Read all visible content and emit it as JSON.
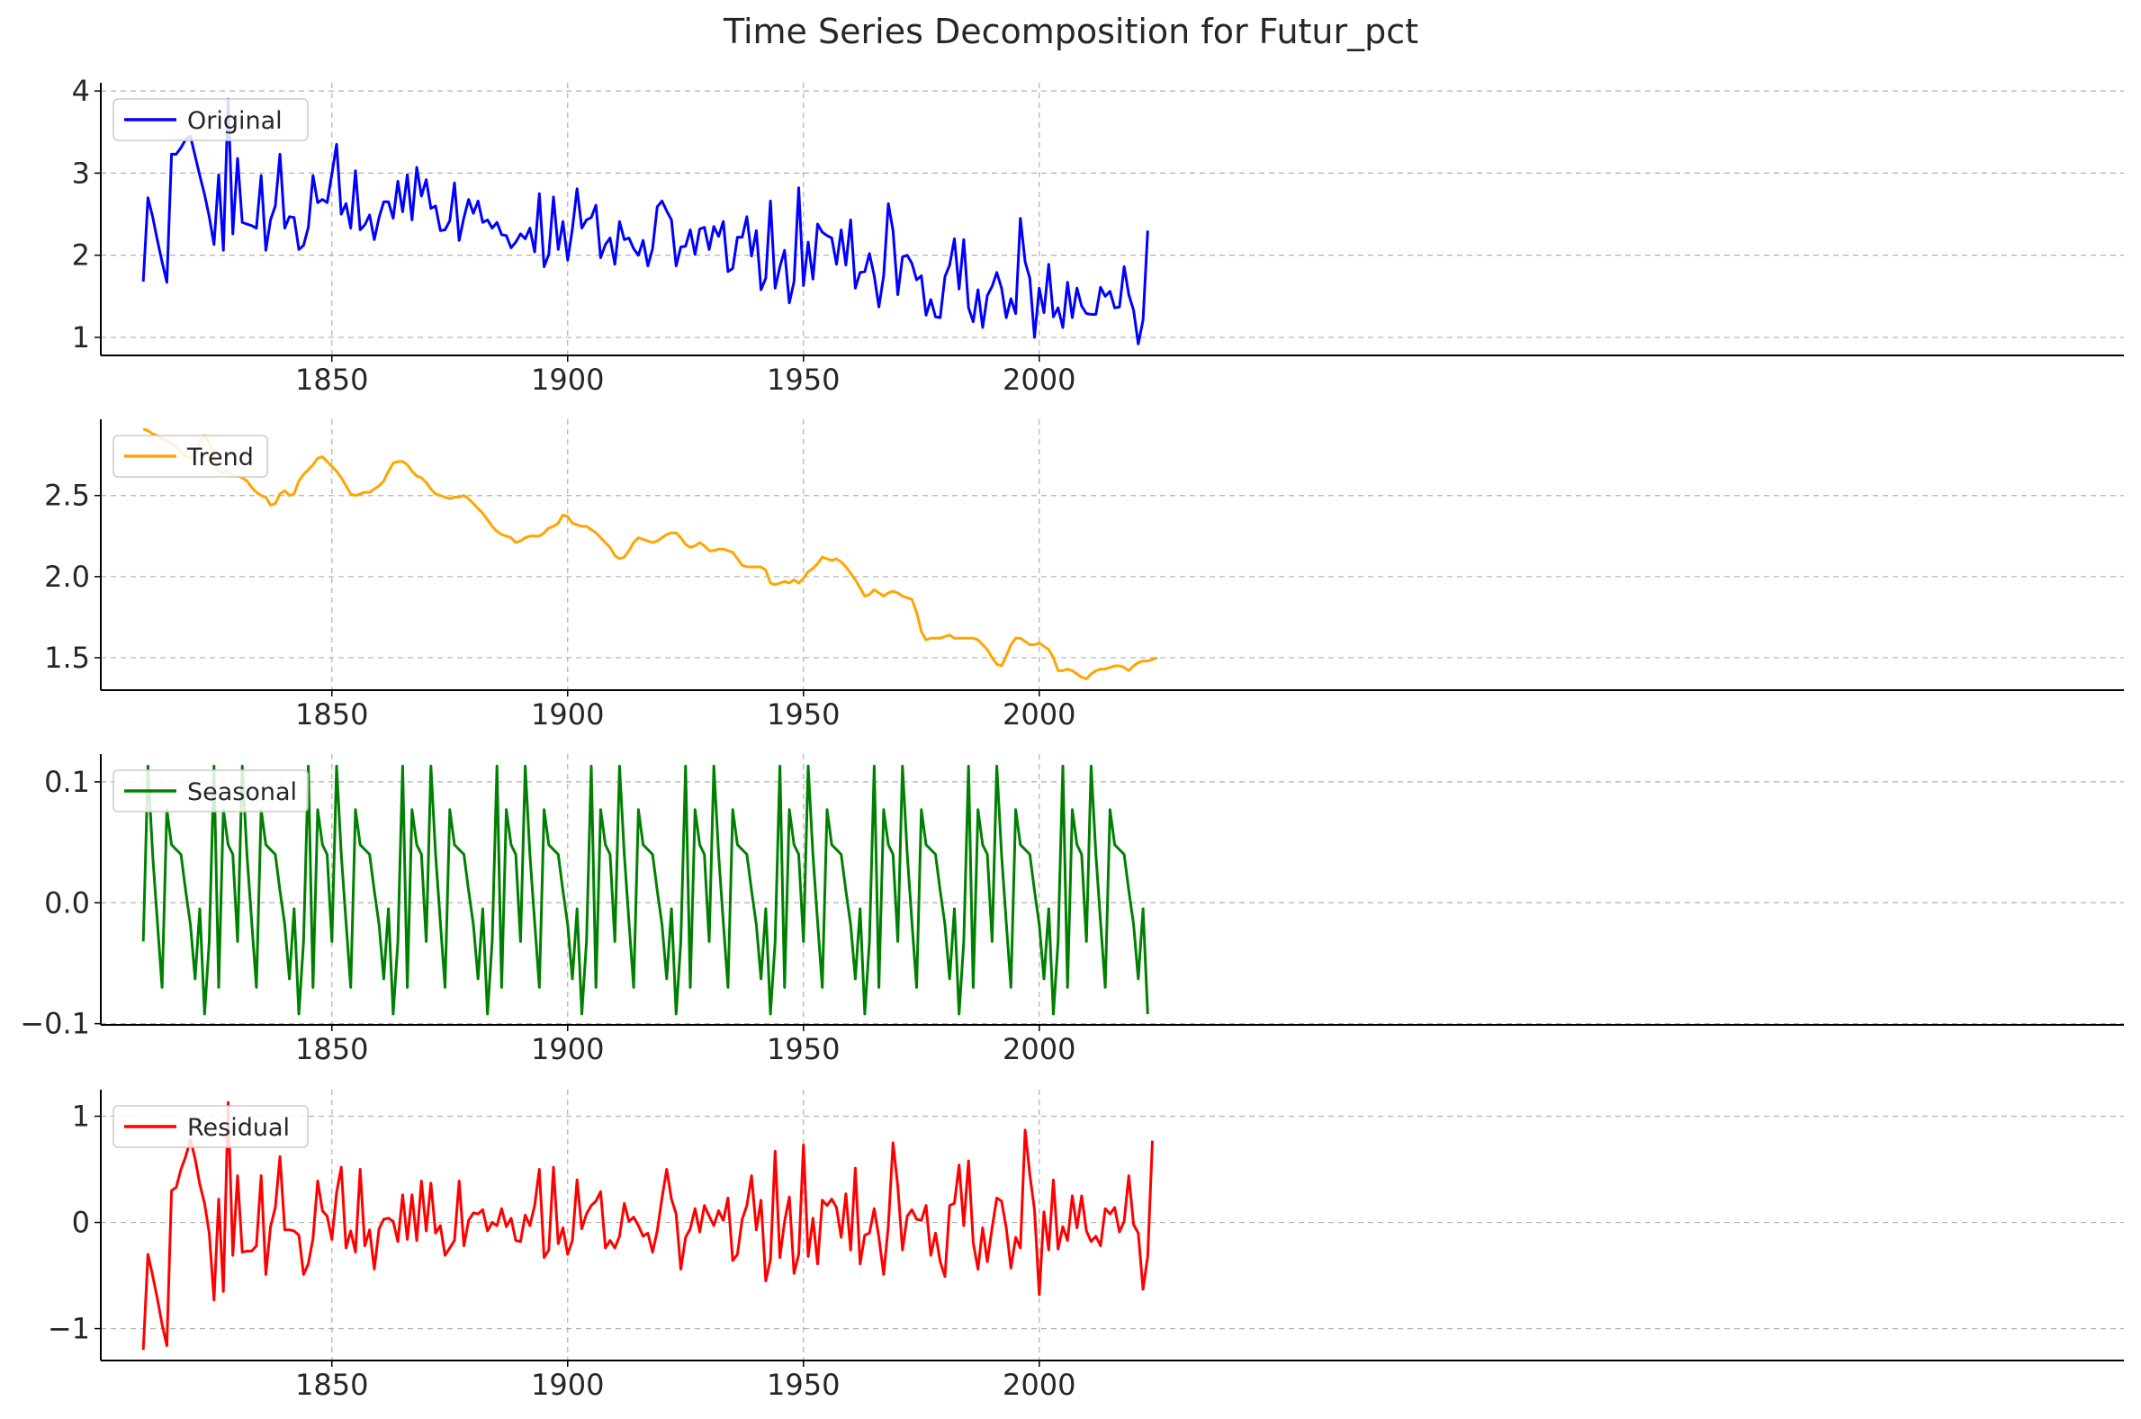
{
  "chart_data": {
    "type": "line",
    "title": "Time Series Decomposition for Futur_pct",
    "xlim": [
      1801,
      2230
    ],
    "grid": true,
    "legend_position": "top-left",
    "x_ticks": [
      1850,
      1900,
      1950,
      2000
    ],
    "x_start": 1810,
    "x_step": 1,
    "panels": [
      {
        "name": "Original",
        "color": "#0000ff",
        "ylim": [
          0.78,
          4.1
        ],
        "y_ticks": [
          {
            "v": 1,
            "label": "1"
          },
          {
            "v": 2,
            "label": "2"
          },
          {
            "v": 3,
            "label": "3"
          },
          {
            "v": 4,
            "label": "4"
          }
        ],
        "values": [
          1.68,
          2.7,
          2.47,
          2.18,
          1.92,
          1.67,
          3.23,
          3.23,
          3.31,
          3.41,
          3.45,
          3.21,
          2.97,
          2.74,
          2.47,
          2.13,
          2.98,
          2.06,
          3.9,
          2.26,
          3.18,
          2.4,
          2.38,
          2.36,
          2.33,
          2.97,
          2.06,
          2.43,
          2.6,
          3.23,
          2.33,
          2.47,
          2.46,
          2.07,
          2.12,
          2.34,
          2.97,
          2.64,
          2.68,
          2.64,
          2.99,
          3.35,
          2.5,
          2.63,
          2.33,
          3.03,
          2.31,
          2.37,
          2.49,
          2.19,
          2.46,
          2.65,
          2.65,
          2.45,
          2.9,
          2.53,
          2.98,
          2.43,
          3.07,
          2.72,
          2.92,
          2.57,
          2.6,
          2.3,
          2.31,
          2.42,
          2.88,
          2.18,
          2.46,
          2.68,
          2.51,
          2.66,
          2.4,
          2.43,
          2.33,
          2.4,
          2.25,
          2.24,
          2.09,
          2.16,
          2.26,
          2.2,
          2.33,
          2.04,
          2.75,
          1.86,
          2.01,
          2.71,
          2.07,
          2.41,
          1.94,
          2.32,
          2.81,
          2.33,
          2.43,
          2.46,
          2.61,
          1.97,
          2.13,
          2.21,
          1.89,
          2.41,
          2.19,
          2.21,
          2.08,
          2.0,
          2.18,
          1.87,
          2.08,
          2.59,
          2.66,
          2.54,
          2.43,
          1.87,
          2.1,
          2.11,
          2.31,
          2.01,
          2.32,
          2.34,
          2.07,
          2.35,
          2.23,
          2.41,
          1.8,
          1.84,
          2.22,
          2.22,
          2.47,
          1.99,
          2.3,
          1.58,
          1.72,
          2.66,
          1.6,
          1.86,
          2.06,
          1.42,
          1.68,
          2.82,
          1.63,
          2.16,
          1.71,
          2.38,
          2.28,
          2.24,
          2.21,
          1.89,
          2.31,
          1.88,
          2.43,
          1.6,
          1.79,
          1.8,
          2.02,
          1.75,
          1.37,
          1.75,
          2.63,
          2.3,
          1.52,
          1.98,
          2.0,
          1.9,
          1.7,
          1.75,
          1.27,
          1.46,
          1.25,
          1.24,
          1.74,
          1.88,
          2.2,
          1.59,
          2.19,
          1.36,
          1.19,
          1.58,
          1.12,
          1.51,
          1.62,
          1.79,
          1.6,
          1.24,
          1.47,
          1.29,
          2.45,
          1.92,
          1.72,
          1.0,
          1.6,
          1.3,
          1.89,
          1.25,
          1.36,
          1.12,
          1.67,
          1.24,
          1.6,
          1.38,
          1.29,
          1.28,
          1.28,
          1.61,
          1.5,
          1.56,
          1.36,
          1.37,
          1.86,
          1.52,
          1.33,
          0.92,
          1.21,
          2.3
        ]
      },
      {
        "name": "Trend",
        "color": "#ffa500",
        "ylim": [
          1.3,
          2.97
        ],
        "y_ticks": [
          {
            "v": 1.5,
            "label": "1.5"
          },
          {
            "v": 2.0,
            "label": "2.0"
          },
          {
            "v": 2.5,
            "label": "2.5"
          }
        ],
        "values": [
          2.91,
          2.9,
          2.88,
          2.87,
          2.85,
          2.84,
          2.82,
          2.8,
          2.77,
          2.74,
          2.73,
          2.76,
          2.83,
          2.87,
          2.83,
          2.73,
          2.65,
          2.64,
          2.65,
          2.62,
          2.62,
          2.61,
          2.59,
          2.55,
          2.52,
          2.5,
          2.49,
          2.44,
          2.45,
          2.51,
          2.53,
          2.5,
          2.51,
          2.59,
          2.63,
          2.66,
          2.69,
          2.73,
          2.74,
          2.71,
          2.68,
          2.65,
          2.61,
          2.56,
          2.51,
          2.5,
          2.51,
          2.52,
          2.52,
          2.54,
          2.56,
          2.59,
          2.65,
          2.7,
          2.71,
          2.71,
          2.69,
          2.65,
          2.62,
          2.61,
          2.58,
          2.54,
          2.51,
          2.5,
          2.49,
          2.48,
          2.49,
          2.49,
          2.5,
          2.48,
          2.45,
          2.42,
          2.39,
          2.35,
          2.31,
          2.28,
          2.26,
          2.25,
          2.24,
          2.21,
          2.22,
          2.24,
          2.25,
          2.25,
          2.25,
          2.27,
          2.3,
          2.31,
          2.33,
          2.38,
          2.37,
          2.33,
          2.32,
          2.31,
          2.31,
          2.29,
          2.27,
          2.24,
          2.21,
          2.18,
          2.13,
          2.11,
          2.12,
          2.16,
          2.21,
          2.24,
          2.23,
          2.22,
          2.21,
          2.22,
          2.24,
          2.26,
          2.27,
          2.27,
          2.24,
          2.2,
          2.18,
          2.19,
          2.21,
          2.19,
          2.16,
          2.16,
          2.17,
          2.17,
          2.16,
          2.15,
          2.11,
          2.07,
          2.06,
          2.06,
          2.06,
          2.06,
          2.04,
          1.96,
          1.95,
          1.96,
          1.97,
          1.96,
          1.98,
          1.96,
          1.99,
          2.03,
          2.05,
          2.08,
          2.12,
          2.11,
          2.1,
          2.11,
          2.09,
          2.06,
          2.02,
          1.98,
          1.93,
          1.88,
          1.89,
          1.92,
          1.9,
          1.88,
          1.9,
          1.91,
          1.9,
          1.88,
          1.87,
          1.86,
          1.78,
          1.66,
          1.61,
          1.62,
          1.62,
          1.62,
          1.63,
          1.64,
          1.62,
          1.62,
          1.62,
          1.62,
          1.62,
          1.61,
          1.58,
          1.55,
          1.5,
          1.46,
          1.45,
          1.51,
          1.58,
          1.62,
          1.62,
          1.6,
          1.58,
          1.58,
          1.59,
          1.57,
          1.55,
          1.5,
          1.42,
          1.42,
          1.43,
          1.42,
          1.4,
          1.38,
          1.37,
          1.4,
          1.42,
          1.43,
          1.43,
          1.44,
          1.45,
          1.45,
          1.44,
          1.42,
          1.45,
          1.47,
          1.48,
          1.48,
          1.49,
          1.5
        ]
      },
      {
        "name": "Seasonal",
        "color": "#008000",
        "ylim": [
          -0.101,
          0.123
        ],
        "y_ticks": [
          {
            "v": -0.1,
            "label": "−0.1"
          },
          {
            "v": 0.0,
            "label": "0.0"
          },
          {
            "v": 0.1,
            "label": "0.1"
          }
        ],
        "period": 10,
        "values": [
          -0.032,
          0.113,
          0.04,
          -0.016,
          -0.07,
          0.077,
          0.048,
          0.044,
          0.04,
          0.01,
          -0.018,
          -0.063,
          -0.005,
          -0.092,
          -0.032,
          0.113,
          -0.07,
          0.077,
          0.048,
          0.04
        ]
      },
      {
        "name": "Residual",
        "color": "#ff0000",
        "ylim": [
          -1.3,
          1.25
        ],
        "y_ticks": [
          {
            "v": -1,
            "label": "−1"
          },
          {
            "v": 0,
            "label": "0"
          },
          {
            "v": 1,
            "label": "1"
          }
        ],
        "values": [
          -1.2,
          -0.3,
          -0.5,
          -0.72,
          -0.96,
          -1.16,
          0.3,
          0.33,
          0.5,
          0.62,
          0.78,
          0.6,
          0.36,
          0.18,
          -0.1,
          -0.73,
          0.22,
          -0.65,
          1.13,
          -0.31,
          0.44,
          -0.28,
          -0.27,
          -0.27,
          -0.22,
          0.44,
          -0.49,
          -0.04,
          0.14,
          0.62,
          -0.07,
          -0.07,
          -0.08,
          -0.12,
          -0.49,
          -0.39,
          -0.15,
          0.39,
          0.11,
          0.06,
          -0.16,
          0.28,
          0.52,
          -0.24,
          -0.08,
          -0.28,
          0.5,
          -0.22,
          -0.07,
          -0.44,
          -0.06,
          0.03,
          0.04,
          0.01,
          -0.18,
          0.26,
          -0.16,
          0.26,
          -0.17,
          0.39,
          -0.08,
          0.37,
          -0.1,
          -0.03,
          -0.31,
          -0.24,
          -0.17,
          0.39,
          -0.22,
          0.02,
          0.09,
          0.08,
          0.12,
          -0.08,
          0.0,
          -0.03,
          0.13,
          -0.04,
          0.04,
          -0.17,
          -0.18,
          0.07,
          -0.03,
          0.16,
          0.5,
          -0.33,
          -0.26,
          0.52,
          -0.2,
          -0.05,
          -0.3,
          -0.17,
          0.4,
          -0.06,
          0.08,
          0.16,
          0.2,
          0.29,
          -0.24,
          -0.17,
          -0.24,
          -0.13,
          0.18,
          0.01,
          0.05,
          -0.03,
          -0.13,
          -0.1,
          -0.28,
          -0.08,
          0.23,
          0.5,
          0.22,
          0.08,
          -0.44,
          -0.14,
          -0.06,
          0.13,
          -0.09,
          0.16,
          0.06,
          -0.03,
          0.11,
          0.02,
          0.23,
          -0.36,
          -0.3,
          0.03,
          0.16,
          0.44,
          -0.07,
          0.21,
          -0.55,
          -0.35,
          0.67,
          -0.33,
          0.01,
          0.24,
          -0.48,
          -0.3,
          0.73,
          -0.32,
          0.04,
          -0.39,
          0.21,
          0.16,
          0.22,
          0.14,
          -0.14,
          0.27,
          -0.26,
          0.51,
          -0.39,
          -0.12,
          -0.1,
          0.13,
          -0.14,
          -0.49,
          -0.03,
          0.75,
          0.34,
          -0.26,
          0.06,
          0.12,
          0.03,
          0.02,
          0.16,
          -0.31,
          -0.1,
          -0.37,
          -0.51,
          0.16,
          0.18,
          0.54,
          -0.03,
          0.58,
          -0.19,
          -0.44,
          -0.05,
          -0.37,
          -0.05,
          0.23,
          0.2,
          -0.05,
          -0.43,
          -0.14,
          -0.24,
          0.87,
          0.45,
          0.12,
          -0.68,
          0.1,
          -0.26,
          0.4,
          -0.25,
          -0.04,
          -0.17,
          0.25,
          -0.05,
          0.25,
          -0.08,
          -0.18,
          -0.13,
          -0.22,
          0.13,
          0.08,
          0.14,
          -0.09,
          0.01,
          0.44,
          -0.02,
          -0.1,
          -0.63,
          -0.32,
          0.77
        ]
      }
    ]
  }
}
